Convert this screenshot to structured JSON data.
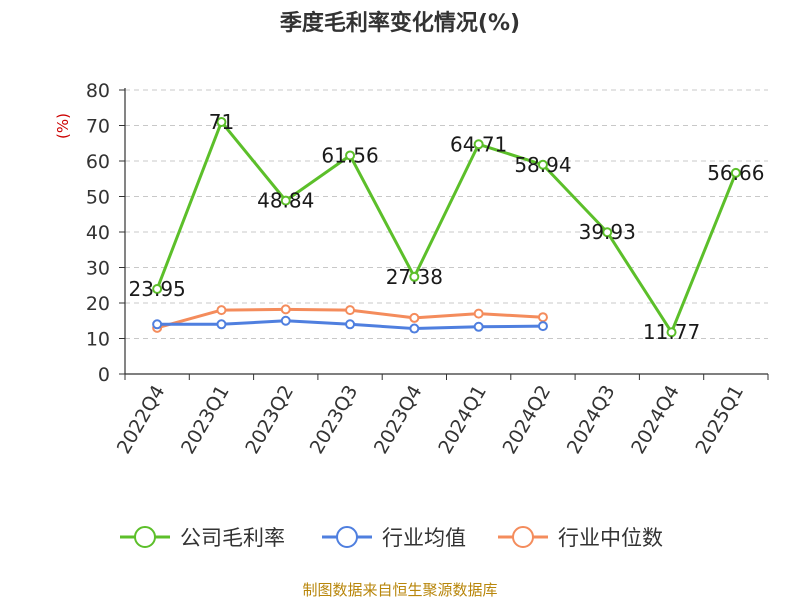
{
  "chart_data": {
    "type": "line",
    "title": "季度毛利率变化情况(%)",
    "y_unit": "(%)",
    "ylim": [
      0,
      80
    ],
    "y_ticks": [
      0,
      10,
      20,
      30,
      40,
      50,
      60,
      70,
      80
    ],
    "grid": true,
    "legend_placement": "bottom",
    "categories": [
      "2022Q4",
      "2023Q1",
      "2023Q2",
      "2023Q3",
      "2023Q4",
      "2024Q1",
      "2024Q2",
      "2024Q3",
      "2024Q4",
      "2025Q1"
    ],
    "series": [
      {
        "name": "公司毛利率",
        "color": "#5cbf2a",
        "values": [
          23.95,
          71,
          48.84,
          61.56,
          27.38,
          64.71,
          58.94,
          39.93,
          11.77,
          56.66
        ],
        "labels": [
          "23.95",
          "71",
          "48.84",
          "61.56",
          "27.38",
          "64.71",
          "58.94",
          "39.93",
          "11.77",
          "56.66"
        ]
      },
      {
        "name": "行业均值",
        "color": "#4f7fdf",
        "values": [
          14.0,
          14.0,
          15.0,
          14.0,
          12.8,
          13.3,
          13.5,
          null,
          null,
          null
        ]
      },
      {
        "name": "行业中位数",
        "color": "#f48c5c",
        "values": [
          13.0,
          18.0,
          18.2,
          18.0,
          15.8,
          17.0,
          16.0,
          null,
          null,
          null
        ]
      }
    ]
  },
  "source": "制图数据来自恒生聚源数据库"
}
